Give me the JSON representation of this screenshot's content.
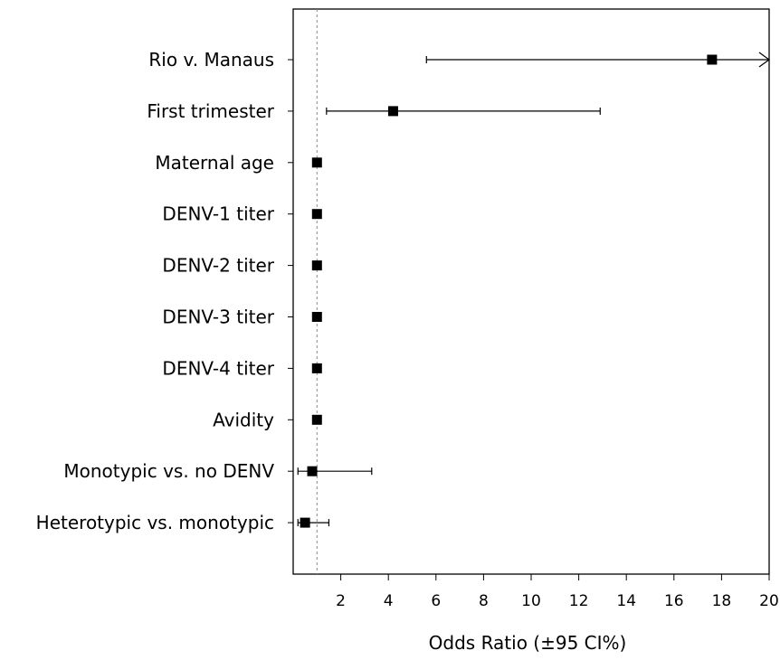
{
  "chart_data": {
    "type": "forest",
    "xlabel": "Odds Ratio (±95 CI%)",
    "xlim": [
      0,
      20
    ],
    "x_ticks": [
      2,
      4,
      6,
      8,
      10,
      12,
      14,
      16,
      18,
      20
    ],
    "x_tick_labels": [
      "2",
      "4",
      "6",
      "8",
      "10",
      "12",
      "14",
      "16",
      "18",
      "20"
    ],
    "reference_line": 1,
    "grid": false,
    "rows": [
      {
        "label": "Rio v. Manaus",
        "estimate": 17.6,
        "lower": 5.6,
        "upper": 20,
        "upper_truncated": true
      },
      {
        "label": "First trimester",
        "estimate": 4.2,
        "lower": 1.4,
        "upper": 12.9
      },
      {
        "label": "Maternal age",
        "estimate": 1.0,
        "lower": 1.0,
        "upper": 1.0
      },
      {
        "label": "DENV-1 titer",
        "estimate": 1.0,
        "lower": 1.0,
        "upper": 1.0
      },
      {
        "label": "DENV-2 titer",
        "estimate": 1.0,
        "lower": 1.0,
        "upper": 1.0
      },
      {
        "label": "DENV-3 titer",
        "estimate": 1.0,
        "lower": 1.0,
        "upper": 1.0
      },
      {
        "label": "DENV-4 titer",
        "estimate": 1.0,
        "lower": 1.0,
        "upper": 1.0
      },
      {
        "label": "Avidity",
        "estimate": 1.0,
        "lower": 1.0,
        "upper": 1.0
      },
      {
        "label": "Monotypic vs. no DENV",
        "estimate": 0.8,
        "lower": 0.2,
        "upper": 3.3
      },
      {
        "label": "Heterotypic vs. monotypic",
        "estimate": 0.5,
        "lower": 0.2,
        "upper": 1.5
      }
    ]
  }
}
